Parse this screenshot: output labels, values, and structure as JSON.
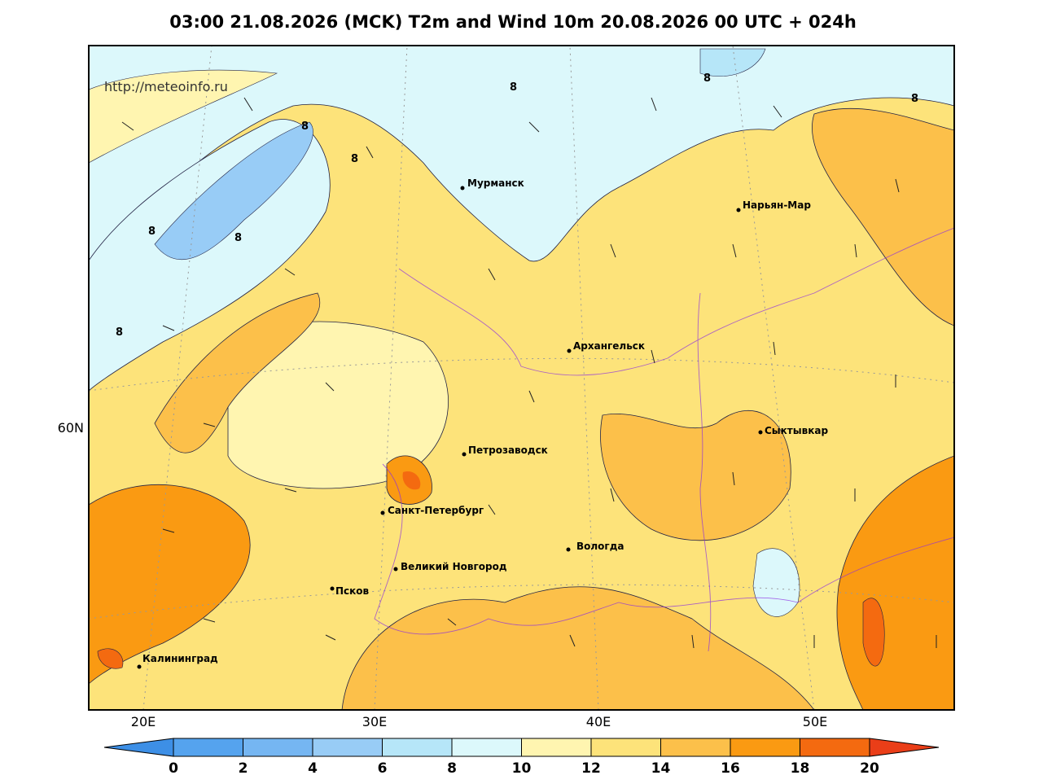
{
  "title": "03:00 21.08.2026 (MCK) T2m and Wind 10m 20.08.2026 00 UTC + 024h",
  "watermark": "http://meteoinfo.ru",
  "cities": [
    "Мурманск",
    "Нарьян-Мар",
    "Архангельск",
    "Сыктывкар",
    "Петрозаводск",
    "Санкт-Петербург",
    "Вологда",
    "Великий Новгород",
    "Псков",
    "Калининград"
  ],
  "lon_labels": [
    "20E",
    "30E",
    "40E",
    "50E"
  ],
  "lat_labels": [
    "60N"
  ],
  "contour_labels": [
    8,
    8,
    8,
    8,
    8,
    8,
    8,
    8
  ],
  "colorbar": {
    "ticks": [
      0,
      2,
      4,
      6,
      8,
      10,
      12,
      14,
      16,
      18,
      20
    ],
    "colors": [
      "#3d8fe6",
      "#55a3ee",
      "#75b6f2",
      "#98ccf6",
      "#b6e6f8",
      "#dcf8fb",
      "#fff5b0",
      "#fde37a",
      "#fcc04a",
      "#fa9a12",
      "#f46a10",
      "#ea3e18"
    ]
  }
}
